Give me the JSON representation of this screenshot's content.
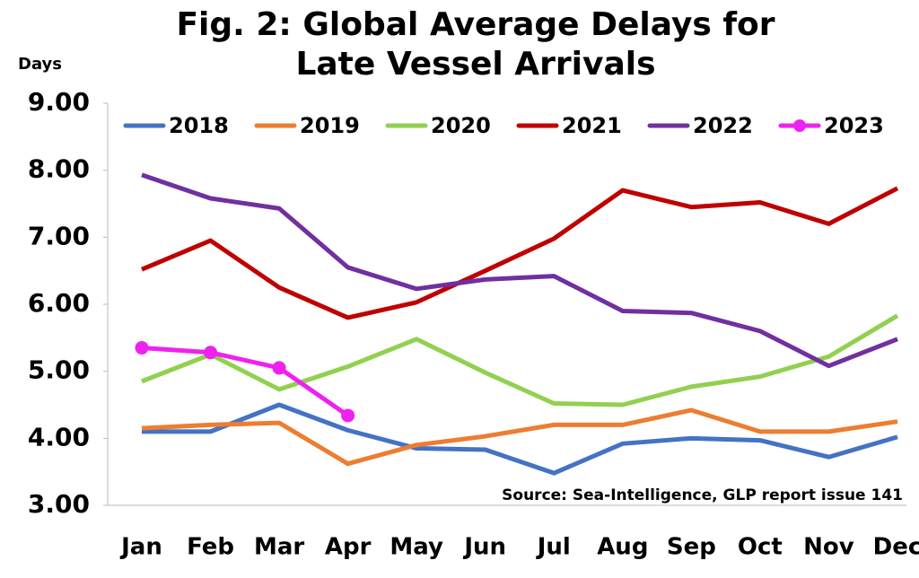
{
  "chart_data": {
    "type": "line",
    "title": "Fig. 2: Global Average Delays for Late Vessel Arrivals",
    "y_label": "Days",
    "annotation": "Source: Sea-Intelligence, GLP report issue 141",
    "categories": [
      "Jan",
      "Feb",
      "Mar",
      "Apr",
      "May",
      "Jun",
      "Jul",
      "Aug",
      "Sep",
      "Oct",
      "Nov",
      "Dec"
    ],
    "series": [
      {
        "name": "2018",
        "color": "#4472c4",
        "values": [
          4.1,
          4.1,
          4.5,
          4.12,
          3.85,
          3.83,
          3.48,
          3.92,
          4.0,
          3.97,
          3.72,
          4.02
        ]
      },
      {
        "name": "2019",
        "color": "#ed7d31",
        "values": [
          4.15,
          4.2,
          4.23,
          3.62,
          3.9,
          4.03,
          4.2,
          4.2,
          4.42,
          4.1,
          4.1,
          4.25
        ]
      },
      {
        "name": "2020",
        "color": "#92d050",
        "values": [
          4.85,
          5.25,
          4.73,
          5.07,
          5.48,
          4.98,
          4.52,
          4.5,
          4.77,
          4.92,
          5.22,
          5.83
        ]
      },
      {
        "name": "2021",
        "color": "#c00000",
        "values": [
          6.52,
          6.95,
          6.25,
          5.8,
          6.03,
          6.5,
          6.98,
          7.7,
          7.45,
          7.52,
          7.2,
          7.73
        ]
      },
      {
        "name": "2022",
        "color": "#7030a0",
        "values": [
          7.93,
          7.58,
          7.43,
          6.55,
          6.23,
          6.37,
          6.42,
          5.9,
          5.87,
          5.6,
          5.08,
          5.48
        ]
      },
      {
        "name": "2023",
        "color": "#ee22ee",
        "marker": "circle",
        "values": [
          5.35,
          5.28,
          5.05,
          4.34,
          null,
          null,
          null,
          null,
          null,
          null,
          null,
          null
        ]
      }
    ],
    "ylim": [
      3,
      9
    ],
    "yticks": [
      {
        "value": 3,
        "label": "3.00"
      },
      {
        "value": 4,
        "label": "4.00"
      },
      {
        "value": 5,
        "label": "5.00"
      },
      {
        "value": 6,
        "label": "6.00"
      },
      {
        "value": 7,
        "label": "7.00"
      },
      {
        "value": 8,
        "label": "8.00"
      },
      {
        "value": 9,
        "label": "9.00"
      }
    ],
    "grid": false,
    "legend": "top"
  }
}
